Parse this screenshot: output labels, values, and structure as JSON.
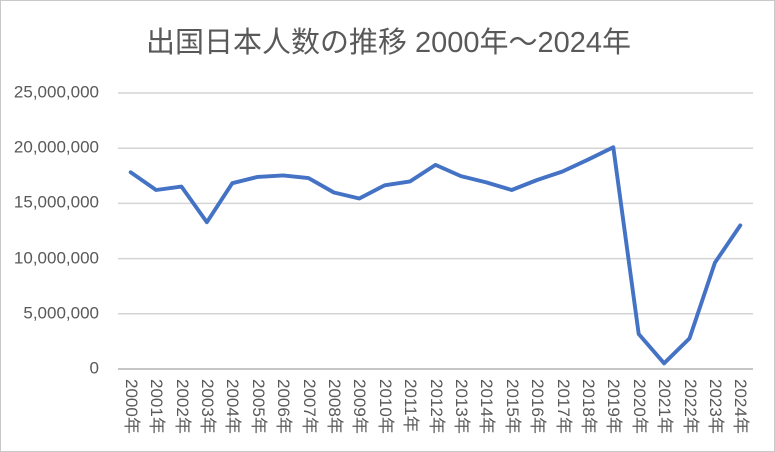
{
  "chart_data": {
    "type": "line",
    "title": "出国日本人数の推移 2000年〜2024年",
    "categories": [
      "2000年",
      "2001年",
      "2002年",
      "2003年",
      "2004年",
      "2005年",
      "2006年",
      "2007年",
      "2008年",
      "2009年",
      "2010年",
      "2011年",
      "2012年",
      "2013年",
      "2014年",
      "2015年",
      "2016年",
      "2017年",
      "2018年",
      "2019年",
      "2020年",
      "2021年",
      "2022年",
      "2023年",
      "2024年"
    ],
    "series": [
      {
        "name": "出国日本人数",
        "values": [
          17818590,
          16215657,
          16522804,
          13296330,
          16831112,
          17403565,
          17534565,
          17294935,
          15987250,
          15445684,
          16637224,
          16994200,
          18490657,
          17472748,
          16903388,
          16213789,
          17116420,
          17889292,
          18954031,
          20080669,
          3174219,
          512244,
          2771770,
          9624958,
          13008900
        ]
      }
    ],
    "xlabel": "",
    "ylabel": "",
    "ylim": [
      0,
      25000000
    ],
    "ytick_interval": 5000000,
    "ytick_labels": [
      "0",
      "5,000,000",
      "10,000,000",
      "15,000,000",
      "20,000,000",
      "25,000,000"
    ],
    "grid": "horizontal",
    "legend": "none",
    "colors": {
      "series_line": "#4472c4",
      "gridline": "#d4d4d4",
      "axis_line": "#c6c6c6",
      "text": "#595959",
      "background": "#ffffff",
      "frame_border": "#c9c9c9"
    }
  }
}
